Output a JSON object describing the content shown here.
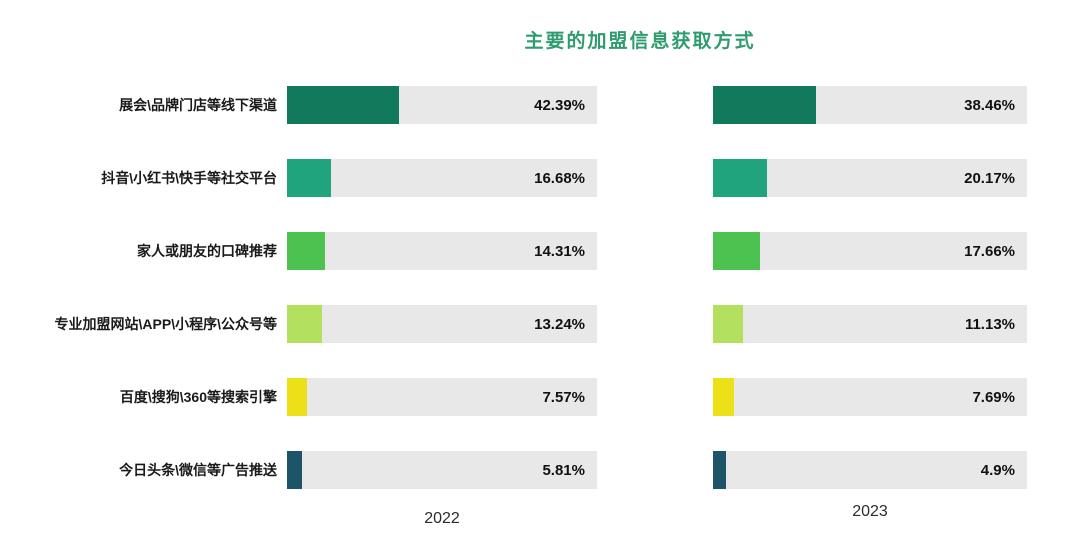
{
  "title": "主要的加盟信息获取方式",
  "chart_data": {
    "type": "bar",
    "orientation": "horizontal",
    "title": "主要的加盟信息获取方式",
    "categories": [
      "展会\\品牌门店等线下渠道",
      "抖音\\小红书\\快手等社交平台",
      "家人或朋友的口碑推荐",
      "专业加盟网站\\APP\\小程序\\公众号等",
      "百度\\搜狗\\360等搜索引擎",
      "今日头条\\微信等广告推送"
    ],
    "series": [
      {
        "name": "2022",
        "values": [
          42.39,
          16.68,
          14.31,
          13.24,
          7.57,
          5.81
        ],
        "labels": [
          "42.39%",
          "16.68%",
          "14.31%",
          "13.24%",
          "7.57%",
          "5.81%"
        ]
      },
      {
        "name": "2023",
        "values": [
          38.46,
          20.17,
          17.66,
          11.13,
          7.69,
          4.9
        ],
        "labels": [
          "38.46%",
          "20.17%",
          "17.66%",
          "11.13%",
          "7.69%",
          "4.9%"
        ]
      }
    ],
    "row_colors": [
      "#117a5c",
      "#1fa47d",
      "#4cc351",
      "#b3e15f",
      "#ece118",
      "#1e5468"
    ],
    "track_color": "#e8e8e8",
    "title_color": "#2e9c6e",
    "xlim": [
      0,
      117
    ],
    "grid": false,
    "value_label_position": "inside-right",
    "group_axis_labels_position": "bottom"
  }
}
